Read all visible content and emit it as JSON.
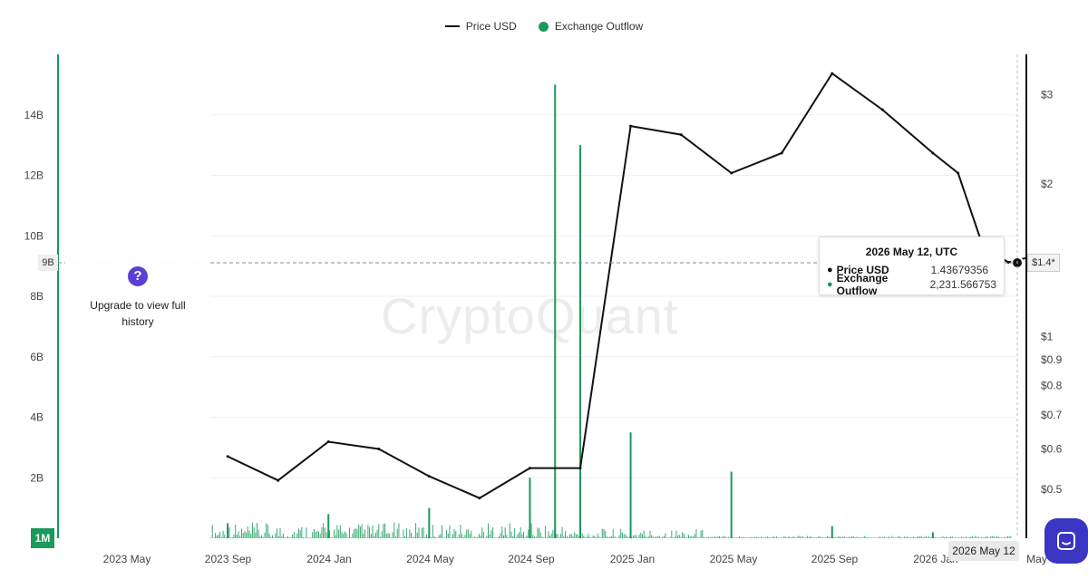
{
  "legend": [
    {
      "label": "Price USD",
      "color": "#111111"
    },
    {
      "label": "Exchange Outflow",
      "color": "#1a9a5c"
    }
  ],
  "upgrade": {
    "text": "Upgrade to view full history",
    "icon": "question-icon"
  },
  "tooltip": {
    "title": "2026 May 12, UTC",
    "rows": [
      {
        "label": "Price USD",
        "value": "1.43679356"
      },
      {
        "label": "Exchange Outflow",
        "value": "2,231.566753"
      }
    ]
  },
  "crosshair": {
    "y_label": "9B",
    "price_label": "$1.4*",
    "date_label": "2026 May 12"
  },
  "resolution_label": "1M",
  "watermark": "CryptoQuant",
  "colors": {
    "price": "#111111",
    "outflow": "#1a9a5c",
    "accent": "#3b35c4"
  },
  "chart_data": {
    "type": "line",
    "x_ticks": [
      "2023 May",
      "2023 Sep",
      "2024 Jan",
      "2024 May",
      "2024 Sep",
      "2025 Jan",
      "2025 May",
      "2025 Sep",
      "2026 Jan",
      "May"
    ],
    "left_axis": {
      "label": "Exchange Outflow",
      "ticks": [
        "2B",
        "4B",
        "6B",
        "8B",
        "10B",
        "12B",
        "14B"
      ],
      "ylim": [
        0,
        16000000000
      ]
    },
    "right_axis": {
      "label": "Price USD",
      "scale": "log",
      "ticks": [
        "$0.5",
        "$0.6",
        "$0.7",
        "$0.8",
        "$0.9",
        "$1",
        "$2",
        "$3"
      ],
      "ylim": [
        0.4,
        3.6
      ]
    },
    "series": [
      {
        "name": "Price USD",
        "type": "line",
        "x": [
          "2023 Sep",
          "2023 Nov",
          "2024 Jan",
          "2024 Mar",
          "2024 May",
          "2024 Jul",
          "2024 Sep",
          "2024 Nov",
          "2025 Jan",
          "2025 Mar",
          "2025 May",
          "2025 Jul",
          "2025 Sep",
          "2025 Nov",
          "2026 Jan",
          "2026 Feb",
          "2026 Mar",
          "2026 Apr",
          "2026 May"
        ],
        "values": [
          0.58,
          0.52,
          0.62,
          0.6,
          0.53,
          0.48,
          0.55,
          0.55,
          2.6,
          2.5,
          2.1,
          2.3,
          3.3,
          2.8,
          2.3,
          2.1,
          1.5,
          1.4,
          1.44
        ]
      },
      {
        "name": "Exchange Outflow",
        "type": "bar",
        "x": [
          "2023 Sep",
          "2024 Jan",
          "2024 May",
          "2024 Sep",
          "2024 Oct",
          "2024 Nov",
          "2025 Jan",
          "2025 May",
          "2025 Sep",
          "2026 Jan",
          "2026 May"
        ],
        "values": [
          500000000,
          800000000,
          1000000000,
          2000000000,
          15000000000,
          13000000000,
          3500000000,
          2200000000,
          400000000,
          200000000,
          2231.566753
        ]
      }
    ]
  }
}
